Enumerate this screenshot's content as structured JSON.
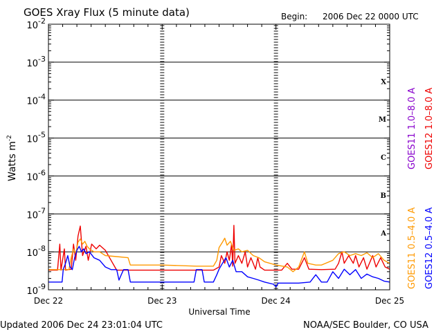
{
  "header": {
    "title": "GOES Xray Flux (5 minute data)",
    "begin_label": "Begin:",
    "begin_value": "2006 Dec 22 0000 UTC"
  },
  "footer": {
    "updated": "Updated 2006 Dec 24 23:01:04 UTC",
    "source": "NOAA/SEC Boulder, CO USA"
  },
  "colors": {
    "goes11_long": "#8800cc",
    "goes12_long": "#ee0000",
    "goes11_short": "#ff9900",
    "goes12_short": "#0000ff",
    "frame": "#000000"
  },
  "chart_data": {
    "type": "line",
    "title": "GOES Xray Flux (5 minute data)",
    "xlabel": "Universal Time",
    "ylabel": "Watts m",
    "ylabel_sup": "-2",
    "y_scale": "log",
    "ylim": [
      1e-09,
      0.01
    ],
    "y_ticks": [
      {
        "base": "10",
        "exp": "-2",
        "v": 0.01
      },
      {
        "base": "10",
        "exp": "-3",
        "v": 0.001
      },
      {
        "base": "10",
        "exp": "-4",
        "v": 0.0001
      },
      {
        "base": "10",
        "exp": "-5",
        "v": 1e-05
      },
      {
        "base": "10",
        "exp": "-6",
        "v": 1e-06
      },
      {
        "base": "10",
        "exp": "-7",
        "v": 1e-07
      },
      {
        "base": "10",
        "exp": "-8",
        "v": 1e-08
      },
      {
        "base": "10",
        "exp": "-9",
        "v": 1e-09
      }
    ],
    "x_ticks": [
      "Dec 22",
      "Dec 23",
      "Dec 24",
      "Dec 25"
    ],
    "flare_classes": [
      {
        "label": "X",
        "v": 0.000316
      },
      {
        "label": "M",
        "v": 3.16e-05
      },
      {
        "label": "C",
        "v": 3.16e-06
      },
      {
        "label": "B",
        "v": 3.16e-07
      },
      {
        "label": "A",
        "v": 3.16e-08
      }
    ],
    "grid": "horizontal lines at each decade",
    "legend": [
      {
        "label": "GOES11 1.0–8.0 A",
        "color": "#8800cc"
      },
      {
        "label": "GOES12 1.0–8.0 A",
        "color": "#ee0000"
      },
      {
        "label": "GOES11 0.5–4.0 A",
        "color": "#ff9900"
      },
      {
        "label": "GOES12 0.5–4.0 A",
        "color": "#0000ff"
      }
    ],
    "series": [
      {
        "name": "GOES12 1.0–8.0 A",
        "color": "#ee0000",
        "points": [
          [
            0.0,
            3.3e-09
          ],
          [
            0.08,
            3.3e-09
          ],
          [
            0.1,
            1.6e-08
          ],
          [
            0.11,
            3.3e-09
          ],
          [
            0.14,
            1.2e-08
          ],
          [
            0.15,
            3.3e-09
          ],
          [
            0.2,
            3.5e-09
          ],
          [
            0.22,
            1.6e-08
          ],
          [
            0.24,
            6e-09
          ],
          [
            0.26,
            2.6e-08
          ],
          [
            0.28,
            4.8e-08
          ],
          [
            0.3,
            8e-09
          ],
          [
            0.33,
            1.4e-08
          ],
          [
            0.35,
            6e-09
          ],
          [
            0.38,
            1.6e-08
          ],
          [
            0.42,
            1.2e-08
          ],
          [
            0.45,
            1.5e-08
          ],
          [
            0.5,
            1.1e-08
          ],
          [
            0.55,
            6e-09
          ],
          [
            0.6,
            3.3e-09
          ],
          [
            1.0,
            3.3e-09
          ],
          [
            1.45,
            3.3e-09
          ],
          [
            1.5,
            4e-09
          ],
          [
            1.52,
            8e-09
          ],
          [
            1.55,
            5e-09
          ],
          [
            1.57,
            1e-08
          ],
          [
            1.59,
            6e-09
          ],
          [
            1.61,
            1.6e-08
          ],
          [
            1.62,
            4.2e-09
          ],
          [
            1.63,
            5e-08
          ],
          [
            1.64,
            5e-09
          ],
          [
            1.67,
            8e-09
          ],
          [
            1.7,
            5e-09
          ],
          [
            1.73,
            1e-08
          ],
          [
            1.75,
            4e-09
          ],
          [
            1.78,
            7e-09
          ],
          [
            1.8,
            5e-09
          ],
          [
            1.82,
            3.5e-09
          ],
          [
            1.84,
            7e-09
          ],
          [
            1.86,
            4e-09
          ],
          [
            1.9,
            3.3e-09
          ],
          [
            2.0,
            3.3e-09
          ],
          [
            2.05,
            3.3e-09
          ],
          [
            2.1,
            5e-09
          ],
          [
            2.14,
            3.5e-09
          ],
          [
            2.2,
            3.5e-09
          ],
          [
            2.25,
            7e-09
          ],
          [
            2.29,
            3.5e-09
          ],
          [
            2.4,
            3.4e-09
          ],
          [
            2.52,
            3.5e-09
          ],
          [
            2.55,
            5e-09
          ],
          [
            2.58,
            1e-08
          ],
          [
            2.6,
            5e-09
          ],
          [
            2.64,
            8e-09
          ],
          [
            2.68,
            5e-09
          ],
          [
            2.7,
            8e-09
          ],
          [
            2.73,
            4e-09
          ],
          [
            2.77,
            7e-09
          ],
          [
            2.8,
            3.5e-09
          ],
          [
            2.85,
            8e-09
          ],
          [
            2.88,
            4e-09
          ],
          [
            2.92,
            7e-09
          ],
          [
            2.96,
            4e-09
          ],
          [
            3.0,
            3.5e-09
          ]
        ]
      },
      {
        "name": "GOES11 0.5–4.0 A",
        "color": "#ff9900",
        "points": [
          [
            0.0,
            3.4e-09
          ],
          [
            0.18,
            3.4e-09
          ],
          [
            0.2,
            7e-09
          ],
          [
            0.22,
            1.2e-08
          ],
          [
            0.24,
            9e-09
          ],
          [
            0.26,
            1.8e-08
          ],
          [
            0.28,
            2.2e-08
          ],
          [
            0.3,
            1.6e-08
          ],
          [
            0.32,
            1.9e-08
          ],
          [
            0.34,
            1.4e-08
          ],
          [
            0.36,
            1.2e-08
          ],
          [
            0.4,
            1e-08
          ],
          [
            0.45,
            1e-08
          ],
          [
            0.5,
            8e-09
          ],
          [
            0.6,
            7.5e-09
          ],
          [
            0.7,
            7e-09
          ],
          [
            0.72,
            4.5e-09
          ],
          [
            0.8,
            4.5e-09
          ],
          [
            1.0,
            4.5e-09
          ],
          [
            1.3,
            4.2e-09
          ],
          [
            1.45,
            4.2e-09
          ],
          [
            1.48,
            6e-09
          ],
          [
            1.5,
            1.3e-08
          ],
          [
            1.53,
            1.8e-08
          ],
          [
            1.55,
            2.3e-08
          ],
          [
            1.57,
            1.5e-08
          ],
          [
            1.6,
            1.9e-08
          ],
          [
            1.63,
            1.1e-08
          ],
          [
            1.67,
            1.2e-08
          ],
          [
            1.7,
            1e-08
          ],
          [
            1.75,
            1.1e-08
          ],
          [
            1.8,
            8e-09
          ],
          [
            1.85,
            7e-09
          ],
          [
            1.9,
            5.5e-09
          ],
          [
            2.0,
            4.5e-09
          ],
          [
            2.1,
            4e-09
          ],
          [
            2.15,
            3e-09
          ],
          [
            2.2,
            4e-09
          ],
          [
            2.25,
            1e-08
          ],
          [
            2.28,
            5e-09
          ],
          [
            2.35,
            4.5e-09
          ],
          [
            2.4,
            4.5e-09
          ],
          [
            2.5,
            6e-09
          ],
          [
            2.55,
            9e-09
          ],
          [
            2.6,
            1e-08
          ],
          [
            2.65,
            8e-09
          ],
          [
            2.7,
            9e-09
          ],
          [
            2.75,
            8e-09
          ],
          [
            2.8,
            9.5e-09
          ],
          [
            2.85,
            7e-09
          ],
          [
            2.9,
            9e-09
          ],
          [
            2.95,
            6e-09
          ],
          [
            3.0,
            5e-09
          ]
        ]
      },
      {
        "name": "GOES12 0.5–4.0 A",
        "color": "#0000ff",
        "points": [
          [
            0.0,
            1.6e-09
          ],
          [
            0.12,
            1.6e-09
          ],
          [
            0.13,
            3.5e-09
          ],
          [
            0.15,
            5e-09
          ],
          [
            0.17,
            8e-09
          ],
          [
            0.19,
            4e-09
          ],
          [
            0.21,
            3.4e-09
          ],
          [
            0.23,
            7e-09
          ],
          [
            0.25,
            1.1e-08
          ],
          [
            0.27,
            1.4e-08
          ],
          [
            0.29,
            1e-08
          ],
          [
            0.31,
            1.2e-08
          ],
          [
            0.33,
            9e-09
          ],
          [
            0.36,
            1e-08
          ],
          [
            0.4,
            7e-09
          ],
          [
            0.45,
            6e-09
          ],
          [
            0.5,
            4e-09
          ],
          [
            0.55,
            3.4e-09
          ],
          [
            0.6,
            3.4e-09
          ],
          [
            0.62,
            1.8e-09
          ],
          [
            0.64,
            2.5e-09
          ],
          [
            0.66,
            3.4e-09
          ],
          [
            0.7,
            3.4e-09
          ],
          [
            0.72,
            1.6e-09
          ],
          [
            1.0,
            1.6e-09
          ],
          [
            1.28,
            1.6e-09
          ],
          [
            1.3,
            3.4e-09
          ],
          [
            1.35,
            3.4e-09
          ],
          [
            1.37,
            1.6e-09
          ],
          [
            1.45,
            1.6e-09
          ],
          [
            1.48,
            2.5e-09
          ],
          [
            1.5,
            3.5e-09
          ],
          [
            1.53,
            5e-09
          ],
          [
            1.56,
            7e-09
          ],
          [
            1.59,
            4e-09
          ],
          [
            1.62,
            6e-09
          ],
          [
            1.65,
            3e-09
          ],
          [
            1.7,
            3e-09
          ],
          [
            1.75,
            2.2e-09
          ],
          [
            1.8,
            2e-09
          ],
          [
            1.85,
            1.8e-09
          ],
          [
            1.9,
            1.6e-09
          ],
          [
            1.98,
            1.4e-09
          ],
          [
            2.0,
            1.2e-09
          ],
          [
            2.02,
            1.5e-09
          ],
          [
            2.2,
            1.5e-09
          ],
          [
            2.3,
            1.6e-09
          ],
          [
            2.35,
            2.5e-09
          ],
          [
            2.4,
            1.6e-09
          ],
          [
            2.45,
            1.6e-09
          ],
          [
            2.5,
            3e-09
          ],
          [
            2.55,
            2e-09
          ],
          [
            2.6,
            3.5e-09
          ],
          [
            2.65,
            2.5e-09
          ],
          [
            2.7,
            3.4e-09
          ],
          [
            2.75,
            2e-09
          ],
          [
            2.8,
            2.6e-09
          ],
          [
            2.85,
            2.2e-09
          ],
          [
            2.9,
            2e-09
          ],
          [
            2.95,
            1.7e-09
          ],
          [
            3.0,
            1.6e-09
          ]
        ]
      }
    ]
  }
}
